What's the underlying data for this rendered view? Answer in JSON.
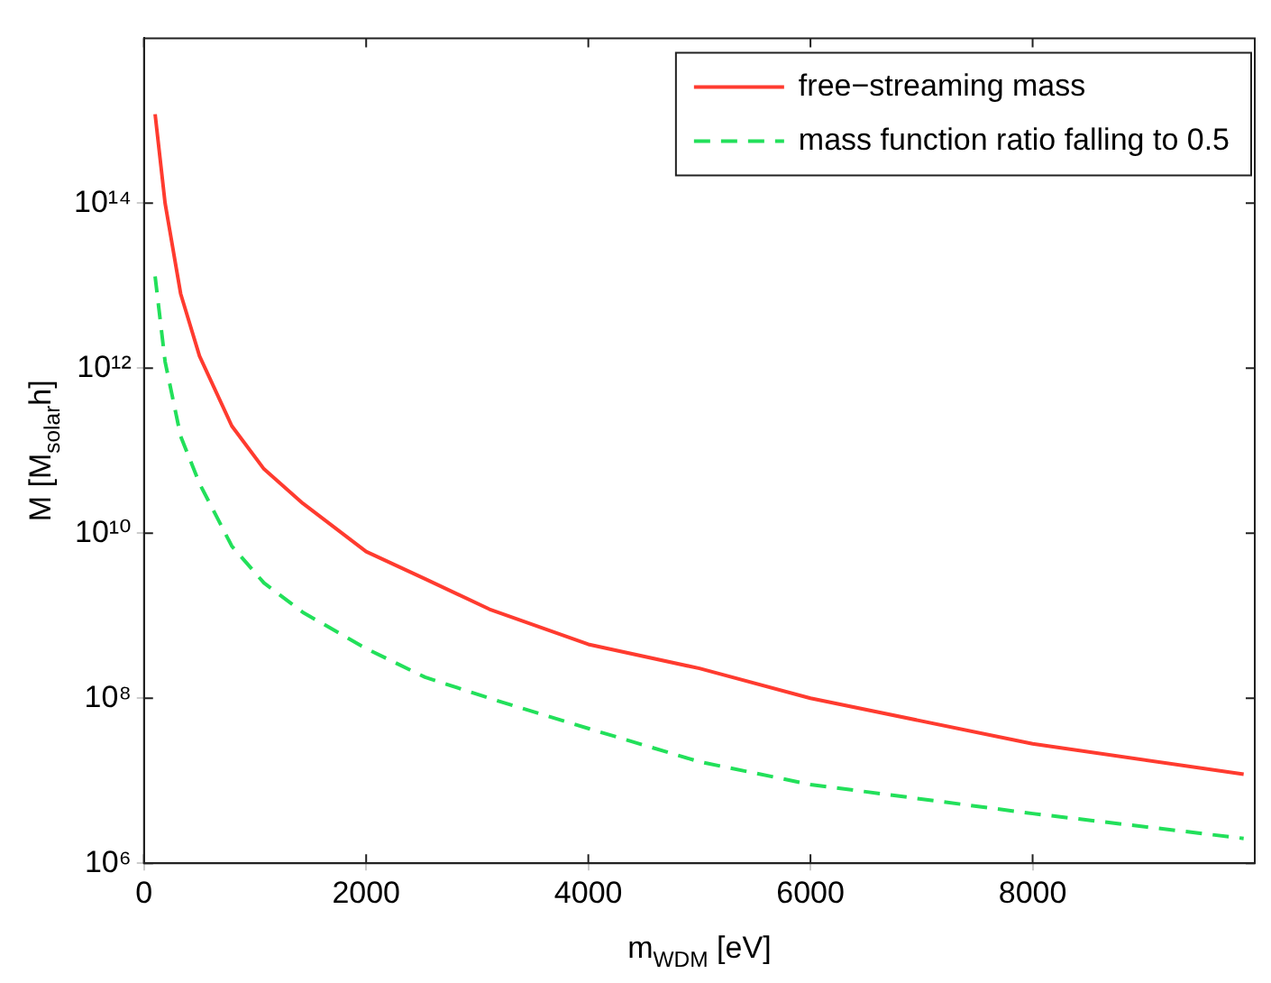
{
  "chart_data": {
    "type": "line",
    "xlabel": "m$_{WDM}$ [eV]",
    "ylabel": "M [M$_{solar}$h]",
    "log": "y",
    "xlim": [
      0,
      10000
    ],
    "xticks": [
      0,
      2000,
      4000,
      6000,
      8000
    ],
    "ylim": [
      1000000,
      1e+16
    ],
    "yticks": [
      {
        "value": 1000000,
        "label": "10⁶"
      },
      {
        "value": 100000000,
        "label": "10⁸"
      },
      {
        "value": 10000000000,
        "label": "10¹⁰"
      },
      {
        "value": 1000000000000,
        "label": "10¹²"
      },
      {
        "value": 100000000000000,
        "label": "10¹⁴"
      }
    ],
    "legend": "top right",
    "marker": "none",
    "x": [
      100,
      190,
      330,
      500,
      790,
      1080,
      1430,
      2000,
      2530,
      3110,
      4000,
      5000,
      6000,
      8000,
      9900
    ],
    "series": [
      {
        "name": "free−streaming mass",
        "color": "#ff3b2f",
        "line_style": "solid",
        "values": [
          1200000000000000.0,
          100000000000000.0,
          8000000000000.0,
          1400000000000.0,
          200000000000.0,
          60000000000.0,
          23000000000.0,
          6000000000.0,
          2800000000.0,
          1200000000.0,
          450000000.0,
          230000000.0,
          100000000.0,
          28000000.0,
          12000000.0
        ]
      },
      {
        "name": "mass function ratio falling to 0.5",
        "color": "#22e05a",
        "line_style": "dashed",
        "values": [
          13000000000000.0,
          1200000000000.0,
          150000000000.0,
          40000000000.0,
          7000000000.0,
          2500000000.0,
          1100000000.0,
          400000000.0,
          180000000.0,
          100000000.0,
          43000000.0,
          17000000.0,
          9000000.0,
          4000000.0,
          2000000.0
        ]
      }
    ]
  }
}
